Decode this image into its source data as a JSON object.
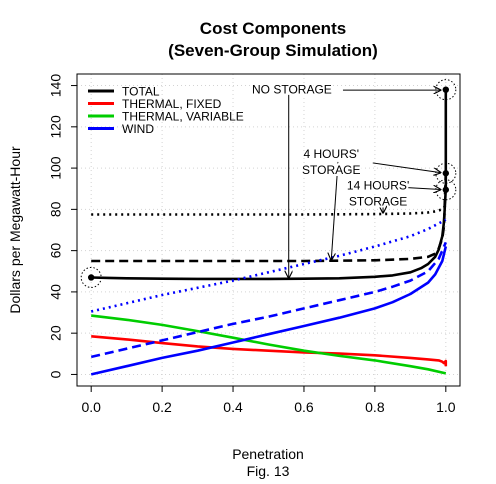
{
  "chart_data": {
    "type": "line",
    "title": "Cost Components",
    "subtitle": "(Seven-Group Simulation)",
    "xlabel": "Penetration",
    "ylabel": "Dollars per Megawatt-Hour",
    "caption": "Fig. 13",
    "xlim": [
      -0.04,
      1.04
    ],
    "ylim": [
      -5.6,
      145.6
    ],
    "xticks": [
      0.0,
      0.2,
      0.4,
      0.6,
      0.8,
      1.0
    ],
    "xtick_labels": [
      "0.0",
      "0.2",
      "0.4",
      "0.6",
      "0.8",
      "1.0"
    ],
    "yticks": [
      0,
      20,
      40,
      60,
      80,
      100,
      120,
      140
    ],
    "ytick_labels": [
      "0",
      "20",
      "40",
      "60",
      "80",
      "100",
      "120",
      "140"
    ],
    "grid": true,
    "legend_position": "top-left",
    "legend": [
      {
        "label": "TOTAL",
        "color": "#000000"
      },
      {
        "label": "THERMAL, FIXED",
        "color": "#ff0000"
      },
      {
        "label": "THERMAL, VARIABLE",
        "color": "#00cd00"
      },
      {
        "label": "WIND",
        "color": "#0000ff"
      }
    ],
    "series": [
      {
        "component": "total",
        "storage": "none",
        "color": "#000000",
        "dash": "solid",
        "x": [
          0,
          0.05,
          0.1,
          0.2,
          0.3,
          0.4,
          0.5,
          0.6,
          0.7,
          0.8,
          0.85,
          0.9,
          0.93,
          0.95,
          0.97,
          0.98,
          0.99,
          0.995,
          1.0,
          1.0
        ],
        "y": [
          47,
          46.8,
          46.6,
          46.4,
          46.3,
          46.3,
          46.3,
          46.4,
          46.6,
          47.3,
          48,
          49.5,
          51.5,
          53.5,
          57,
          60.5,
          67,
          74,
          90,
          138
        ]
      },
      {
        "component": "total",
        "storage": "4h",
        "color": "#000000",
        "dash": "dashed",
        "x": [
          0,
          0.2,
          0.4,
          0.6,
          0.8,
          0.9,
          0.95,
          0.97,
          0.98,
          0.99,
          0.995,
          1.0
        ],
        "y": [
          55,
          55,
          55,
          55,
          55.3,
          56,
          57,
          58.5,
          61,
          66,
          72,
          98
        ]
      },
      {
        "component": "total",
        "storage": "14h",
        "color": "#000000",
        "dash": "dotted",
        "x": [
          0,
          0.2,
          0.4,
          0.6,
          0.8,
          0.9,
          0.95,
          0.97,
          0.99,
          1.0
        ],
        "y": [
          77.5,
          77.5,
          77.5,
          77.5,
          77.7,
          78,
          78.5,
          79,
          80,
          82
        ]
      },
      {
        "component": "thermal_fixed",
        "storage": "none",
        "color": "#ff0000",
        "dash": "solid",
        "x": [
          0,
          0.1,
          0.2,
          0.3,
          0.4,
          0.5,
          0.6,
          0.7,
          0.8,
          0.9,
          0.95,
          0.98,
          0.99,
          0.995,
          1.0,
          1.0
        ],
        "y": [
          18.5,
          17,
          15.2,
          13.6,
          12.4,
          11.5,
          10.7,
          10.1,
          9.3,
          8,
          7.3,
          6.8,
          6.2,
          5.5,
          6.5,
          4
        ]
      },
      {
        "component": "thermal_variable",
        "storage": "none",
        "color": "#00cd00",
        "dash": "solid",
        "x": [
          0,
          0.1,
          0.2,
          0.3,
          0.4,
          0.5,
          0.6,
          0.7,
          0.8,
          0.9,
          0.95,
          1.0
        ],
        "y": [
          28.5,
          26.5,
          24,
          21,
          17.8,
          14.5,
          11.5,
          9,
          6.8,
          4,
          2.5,
          0.5
        ]
      },
      {
        "component": "wind",
        "storage": "none",
        "color": "#0000ff",
        "dash": "solid",
        "x": [
          0,
          0.1,
          0.2,
          0.3,
          0.4,
          0.5,
          0.6,
          0.7,
          0.8,
          0.85,
          0.9,
          0.95,
          0.97,
          0.99,
          1.0
        ],
        "y": [
          0,
          4,
          8,
          11.5,
          15.5,
          19.5,
          23.5,
          27.5,
          32,
          35,
          39,
          44.5,
          48.5,
          55,
          62
        ]
      },
      {
        "component": "wind",
        "storage": "4h",
        "color": "#0000ff",
        "dash": "dashed",
        "x": [
          0,
          0.1,
          0.2,
          0.3,
          0.4,
          0.5,
          0.6,
          0.7,
          0.8,
          0.85,
          0.9,
          0.95,
          0.98,
          1.0
        ],
        "y": [
          8.5,
          12.5,
          16.5,
          20.5,
          24.5,
          28,
          32,
          36,
          40,
          42.5,
          45.5,
          50,
          56,
          64
        ]
      },
      {
        "component": "wind",
        "storage": "14h",
        "color": "#0000ff",
        "dash": "dotted",
        "x": [
          0,
          0.1,
          0.2,
          0.3,
          0.4,
          0.5,
          0.6,
          0.7,
          0.8,
          0.9,
          0.95,
          1.0
        ],
        "y": [
          30.5,
          34.5,
          38.5,
          42,
          45.5,
          49.5,
          53.5,
          57.5,
          62,
          67,
          70.5,
          75
        ]
      }
    ],
    "points": [
      {
        "x": 0.0,
        "y": 47,
        "circled": true
      },
      {
        "x": 1.0,
        "y": 138,
        "circled": true
      },
      {
        "x": 1.0,
        "y": 97.5,
        "circled": true
      },
      {
        "x": 1.0,
        "y": 89.5,
        "circled": true
      }
    ],
    "annotations": [
      {
        "name": "no-storage",
        "lines": [
          "NO STORAGE"
        ]
      },
      {
        "name": "4-hours-storage",
        "lines": [
          "4 HOURS'",
          "STORAGE"
        ]
      },
      {
        "name": "14-hours-storage",
        "lines": [
          "14 HOURS'",
          "STORAGE"
        ]
      }
    ]
  }
}
